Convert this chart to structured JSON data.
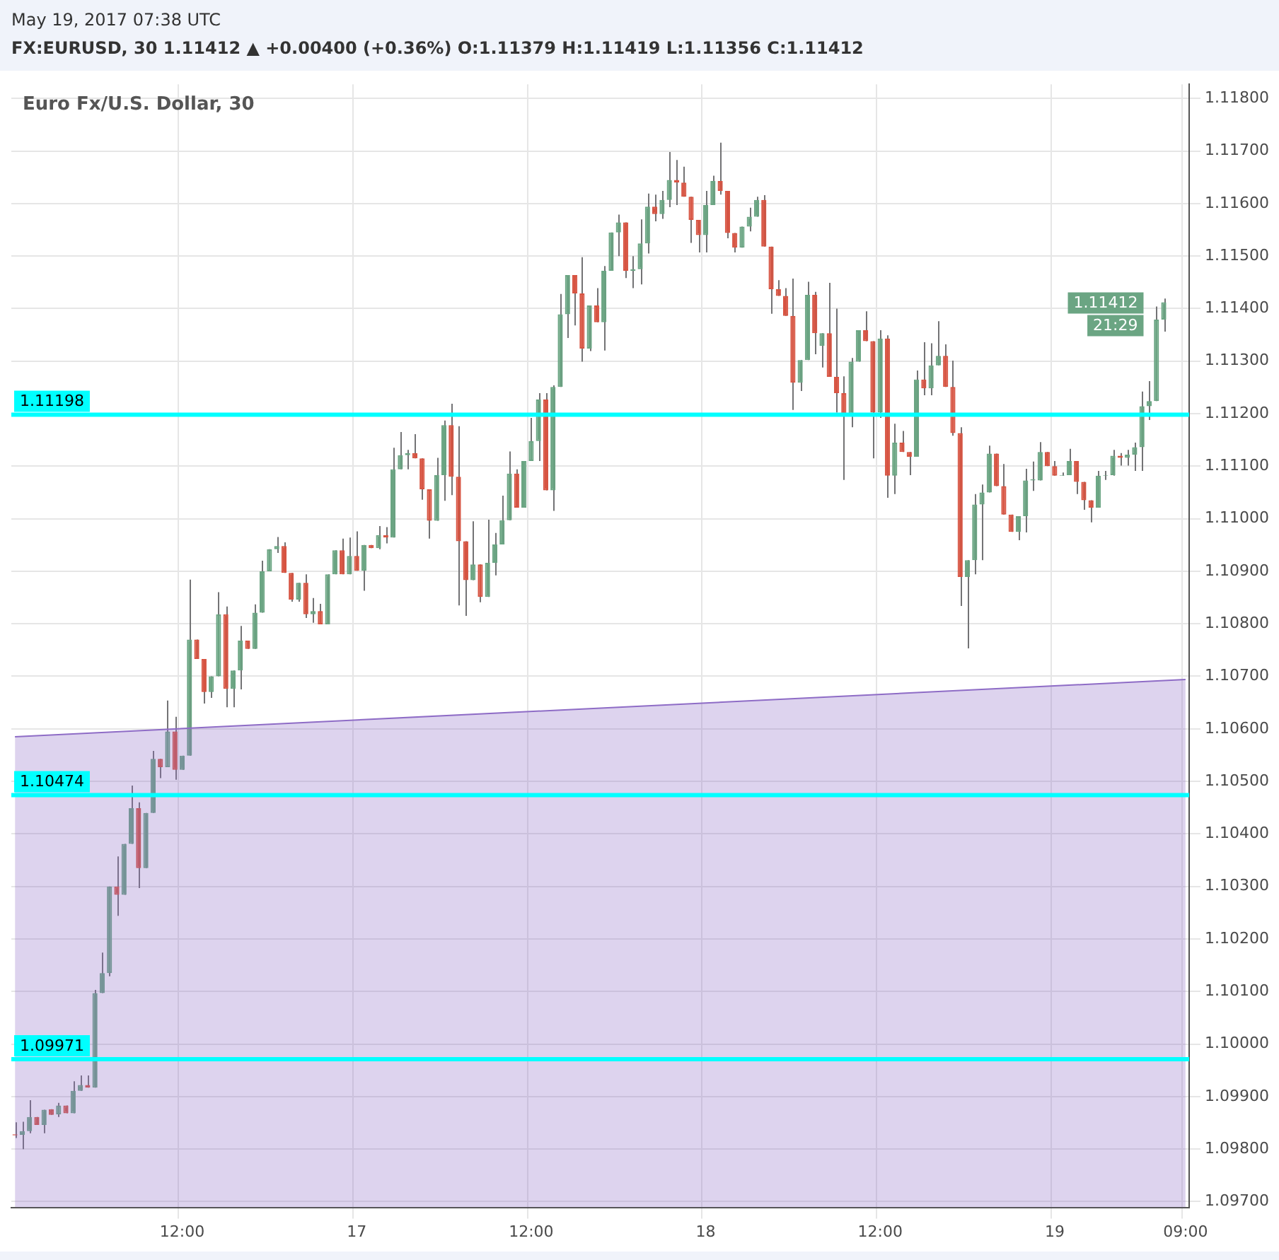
{
  "chart_data": {
    "type": "candlestick",
    "title": "Euro Fx/U.S. Dollar, 30",
    "categories": [
      null,
      null,
      null,
      null,
      null,
      null,
      null,
      null,
      null,
      null,
      null,
      null,
      null,
      null,
      null,
      null,
      null,
      null,
      null,
      null,
      null,
      null,
      null,
      "12:00",
      null,
      null,
      null,
      null,
      null,
      null,
      null,
      null,
      null,
      null,
      null,
      null,
      null,
      null,
      null,
      null,
      null,
      null,
      null,
      null,
      null,
      null,
      null,
      "17",
      null,
      null,
      null,
      null,
      null,
      null,
      null,
      null,
      null,
      null,
      null,
      null,
      null,
      null,
      null,
      null,
      null,
      null,
      null,
      null,
      null,
      null,
      null,
      "12:00",
      null,
      null,
      null,
      null,
      null,
      null,
      null,
      null,
      null,
      null,
      null,
      null,
      null,
      null,
      null,
      null,
      null,
      null,
      null,
      null,
      null,
      null,
      null,
      "18",
      null,
      null,
      null,
      null,
      null,
      null,
      null,
      null,
      null,
      null,
      null,
      null,
      null,
      null,
      null,
      null,
      null,
      null,
      null,
      null,
      null,
      null,
      null,
      "12:00",
      null,
      null,
      null,
      null,
      null,
      null,
      null,
      null,
      null,
      null,
      null,
      null,
      null,
      null,
      null,
      null,
      null,
      null,
      null,
      null,
      null,
      null,
      null,
      "19",
      null,
      null,
      null,
      null,
      null,
      null,
      null,
      null,
      null,
      null,
      null,
      null,
      null,
      null,
      null,
      null,
      null,
      "09:00"
    ],
    "ohlc": [
      [
        1.09828,
        1.09851,
        1.09821,
        1.09826
      ],
      [
        1.09827,
        1.09852,
        1.098,
        1.09834
      ],
      [
        1.09834,
        1.09893,
        1.0983,
        1.09861
      ],
      [
        1.09861,
        1.09861,
        1.09846,
        1.09846
      ],
      [
        1.09846,
        1.09875,
        1.0983,
        1.09875
      ],
      [
        1.09876,
        1.09876,
        1.09865,
        1.09865
      ],
      [
        1.09866,
        1.09888,
        1.09861,
        1.09883
      ],
      [
        1.09883,
        1.09883,
        1.09868,
        1.09868
      ],
      [
        1.09868,
        1.09929,
        1.09868,
        1.09911
      ],
      [
        1.09911,
        1.0994,
        1.09911,
        1.09922
      ],
      [
        1.09922,
        1.0994,
        1.09917,
        1.09917
      ],
      [
        1.09917,
        1.10103,
        1.09917,
        1.10097
      ],
      [
        1.10097,
        1.10174,
        1.10097,
        1.10135
      ],
      [
        1.10135,
        1.103,
        1.10129,
        1.103
      ],
      [
        1.103,
        1.10357,
        1.10244,
        1.10284
      ],
      [
        1.10284,
        1.10381,
        1.10284,
        1.10381
      ],
      [
        1.10381,
        1.10492,
        1.10381,
        1.10449
      ],
      [
        1.10449,
        1.1046,
        1.10297,
        1.10335
      ],
      [
        1.10335,
        1.1044,
        1.10335,
        1.1044
      ],
      [
        1.1044,
        1.10558,
        1.1044,
        1.10543
      ],
      [
        1.10543,
        1.10543,
        1.10506,
        1.10527
      ],
      [
        1.10527,
        1.10654,
        1.10527,
        1.10595
      ],
      [
        1.10595,
        1.10623,
        1.10503,
        1.10522
      ],
      [
        1.10522,
        1.10549,
        1.10522,
        1.10549
      ],
      [
        1.10549,
        1.10884,
        1.10549,
        1.1077
      ],
      [
        1.1077,
        1.1077,
        1.10733,
        1.10733
      ],
      [
        1.10733,
        1.10733,
        1.10648,
        1.1067
      ],
      [
        1.1067,
        1.107,
        1.10659,
        1.107
      ],
      [
        1.107,
        1.1086,
        1.107,
        1.10818
      ],
      [
        1.10818,
        1.10833,
        1.10641,
        1.10676
      ],
      [
        1.10676,
        1.10711,
        1.10641,
        1.10711
      ],
      [
        1.10711,
        1.10796,
        1.10675,
        1.10768
      ],
      [
        1.10768,
        1.10768,
        1.10752,
        1.10752
      ],
      [
        1.10752,
        1.10837,
        1.10752,
        1.10821
      ],
      [
        1.10821,
        1.1092,
        1.10821,
        1.109
      ],
      [
        1.109,
        1.10942,
        1.109,
        1.10942
      ],
      [
        1.10942,
        1.10965,
        1.10935,
        1.10948
      ],
      [
        1.10948,
        1.10955,
        1.10897,
        1.10897
      ],
      [
        1.10897,
        1.10897,
        1.10842,
        1.10846
      ],
      [
        1.10846,
        1.10878,
        1.10842,
        1.10878
      ],
      [
        1.10878,
        1.10894,
        1.10811,
        1.10818
      ],
      [
        1.10818,
        1.10849,
        1.10802,
        1.10824
      ],
      [
        1.10824,
        1.10838,
        1.10799,
        1.10799
      ],
      [
        1.10799,
        1.10894,
        1.10799,
        1.10894
      ],
      [
        1.10894,
        1.1094,
        1.10894,
        1.1094
      ],
      [
        1.1094,
        1.10962,
        1.10894,
        1.10894
      ],
      [
        1.10894,
        1.10964,
        1.10894,
        1.10929
      ],
      [
        1.10929,
        1.10976,
        1.10901,
        1.10901
      ],
      [
        1.10901,
        1.1095,
        1.10863,
        1.1095
      ],
      [
        1.1095,
        1.1095,
        1.10944,
        1.10944
      ],
      [
        1.10944,
        1.10986,
        1.10942,
        1.10969
      ],
      [
        1.10969,
        1.10984,
        1.10953,
        1.10964
      ],
      [
        1.10964,
        1.11135,
        1.10964,
        1.11094
      ],
      [
        1.11094,
        1.11165,
        1.11094,
        1.11121
      ],
      [
        1.11121,
        1.11131,
        1.11094,
        1.11125
      ],
      [
        1.11125,
        1.11161,
        1.11115,
        1.11115
      ],
      [
        1.11115,
        1.11115,
        1.11036,
        1.11056
      ],
      [
        1.11056,
        1.11056,
        1.10962,
        1.10996
      ],
      [
        1.10996,
        1.11116,
        1.10996,
        1.11083
      ],
      [
        1.11083,
        1.11187,
        1.11034,
        1.11178
      ],
      [
        1.11178,
        1.11219,
        1.11045,
        1.1108
      ],
      [
        1.1108,
        1.11176,
        1.10835,
        1.10957
      ],
      [
        1.10957,
        1.10957,
        1.10815,
        1.10883
      ],
      [
        1.10883,
        1.10995,
        1.10883,
        1.10913
      ],
      [
        1.10913,
        1.10913,
        1.10841,
        1.10851
      ],
      [
        1.10851,
        1.10998,
        1.10851,
        1.10916
      ],
      [
        1.10916,
        1.10973,
        1.10892,
        1.10951
      ],
      [
        1.10951,
        1.11044,
        1.10951,
        1.10997
      ],
      [
        1.10997,
        1.11128,
        1.10997,
        1.11086
      ],
      [
        1.11086,
        1.11094,
        1.11021,
        1.11021
      ],
      [
        1.11021,
        1.1111,
        1.11021,
        1.1111
      ],
      [
        1.1111,
        1.11192,
        1.1111,
        1.11148
      ],
      [
        1.11148,
        1.11239,
        1.1111,
        1.11227
      ],
      [
        1.11227,
        1.11239,
        1.11054,
        1.11054
      ],
      [
        1.11054,
        1.11254,
        1.11015,
        1.11251
      ],
      [
        1.11251,
        1.11428,
        1.11251,
        1.11389
      ],
      [
        1.11389,
        1.11464,
        1.11344,
        1.11464
      ],
      [
        1.11464,
        1.11464,
        1.11368,
        1.11429
      ],
      [
        1.11429,
        1.11498,
        1.11299,
        1.11324
      ],
      [
        1.11324,
        1.11406,
        1.11319,
        1.11406
      ],
      [
        1.11406,
        1.11439,
        1.11374,
        1.11374
      ],
      [
        1.11374,
        1.11481,
        1.1132,
        1.11472
      ],
      [
        1.11472,
        1.11545,
        1.11472,
        1.11545
      ],
      [
        1.11545,
        1.11579,
        1.115,
        1.11564
      ],
      [
        1.11564,
        1.11564,
        1.11458,
        1.11472
      ],
      [
        1.11472,
        1.115,
        1.11439,
        1.11475
      ],
      [
        1.11475,
        1.1157,
        1.11446,
        1.11524
      ],
      [
        1.11524,
        1.11619,
        1.11505,
        1.11594
      ],
      [
        1.11594,
        1.11617,
        1.11566,
        1.1158
      ],
      [
        1.1158,
        1.11624,
        1.11571,
        1.11607
      ],
      [
        1.11607,
        1.11698,
        1.11593,
        1.11645
      ],
      [
        1.11645,
        1.11683,
        1.11597,
        1.1164
      ],
      [
        1.1164,
        1.1167,
        1.11613,
        1.11613
      ],
      [
        1.11613,
        1.11613,
        1.11525,
        1.11569
      ],
      [
        1.11569,
        1.11569,
        1.11507,
        1.1154
      ],
      [
        1.1154,
        1.11624,
        1.11507,
        1.11597
      ],
      [
        1.11597,
        1.11653,
        1.11597,
        1.11643
      ],
      [
        1.11643,
        1.11716,
        1.11617,
        1.11624
      ],
      [
        1.11624,
        1.11624,
        1.11534,
        1.11544
      ],
      [
        1.11544,
        1.11544,
        1.11507,
        1.11516
      ],
      [
        1.11516,
        1.11556,
        1.11516,
        1.11556
      ],
      [
        1.11556,
        1.11592,
        1.11547,
        1.11575
      ],
      [
        1.11575,
        1.11613,
        1.11575,
        1.11607
      ],
      [
        1.11607,
        1.11616,
        1.11518,
        1.11518
      ],
      [
        1.11518,
        1.11518,
        1.1139,
        1.11437
      ],
      [
        1.11437,
        1.11454,
        1.11424,
        1.11424
      ],
      [
        1.11424,
        1.11439,
        1.11386,
        1.11386
      ],
      [
        1.11386,
        1.11457,
        1.11207,
        1.11259
      ],
      [
        1.11259,
        1.11302,
        1.11243,
        1.11302
      ],
      [
        1.11302,
        1.11451,
        1.11302,
        1.11426
      ],
      [
        1.11426,
        1.11432,
        1.11313,
        1.11353
      ],
      [
        1.11329,
        1.11353,
        1.11288,
        1.11353
      ],
      [
        1.11353,
        1.11449,
        1.1127,
        1.1127
      ],
      [
        1.1127,
        1.114,
        1.11202,
        1.11239
      ],
      [
        1.11239,
        1.11271,
        1.11074,
        1.11199
      ],
      [
        1.11199,
        1.11306,
        1.11174,
        1.11299
      ],
      [
        1.11299,
        1.11359,
        1.11299,
        1.11359
      ],
      [
        1.11359,
        1.11395,
        1.11338,
        1.11338
      ],
      [
        1.11338,
        1.11338,
        1.11115,
        1.11202
      ],
      [
        1.11202,
        1.11359,
        1.11192,
        1.11343
      ],
      [
        1.11343,
        1.11349,
        1.1104,
        1.11082
      ],
      [
        1.11082,
        1.11181,
        1.11047,
        1.11145
      ],
      [
        1.11145,
        1.11167,
        1.11127,
        1.11127
      ],
      [
        1.11127,
        1.11127,
        1.11083,
        1.11118
      ],
      [
        1.11118,
        1.11282,
        1.11118,
        1.11265
      ],
      [
        1.11265,
        1.11336,
        1.11235,
        1.11248
      ],
      [
        1.11248,
        1.11334,
        1.11235,
        1.11292
      ],
      [
        1.11292,
        1.11376,
        1.11292,
        1.1131
      ],
      [
        1.1131,
        1.11332,
        1.11251,
        1.11251
      ],
      [
        1.11251,
        1.11301,
        1.11158,
        1.11163
      ],
      [
        1.11163,
        1.11174,
        1.10834,
        1.10889
      ],
      [
        1.10889,
        1.10921,
        1.10753,
        1.10921
      ],
      [
        1.10921,
        1.11047,
        1.10894,
        1.11027
      ],
      [
        1.11027,
        1.11065,
        1.10921,
        1.1105
      ],
      [
        1.1105,
        1.11139,
        1.1105,
        1.11124
      ],
      [
        1.11124,
        1.11124,
        1.11062,
        1.11062
      ],
      [
        1.11062,
        1.11104,
        1.11008,
        1.11008
      ],
      [
        1.11008,
        1.11008,
        1.10975,
        1.10975
      ],
      [
        1.10975,
        1.11005,
        1.10959,
        1.11005
      ],
      [
        1.11005,
        1.11095,
        1.10974,
        1.11073
      ],
      [
        1.11073,
        1.11109,
        1.11053,
        1.11075
      ],
      [
        1.11073,
        1.11146,
        1.11073,
        1.11127
      ],
      [
        1.11127,
        1.11127,
        1.111,
        1.111
      ],
      [
        1.111,
        1.1111,
        1.11082,
        1.11082
      ],
      [
        1.11082,
        1.11088,
        1.11082,
        1.11083
      ],
      [
        1.11083,
        1.11133,
        1.11083,
        1.1111
      ],
      [
        1.1111,
        1.1111,
        1.11047,
        1.1107
      ],
      [
        1.1107,
        1.1107,
        1.11017,
        1.11035
      ],
      [
        1.11035,
        1.11035,
        1.10993,
        1.11021
      ],
      [
        1.11021,
        1.11091,
        1.11021,
        1.11082
      ],
      [
        1.11082,
        1.11091,
        1.11074,
        1.11083
      ],
      [
        1.11083,
        1.11131,
        1.11082,
        1.1112
      ],
      [
        1.1112,
        1.11125,
        1.11101,
        1.11116
      ],
      [
        1.11116,
        1.11131,
        1.11101,
        1.11122
      ],
      [
        1.11122,
        1.11145,
        1.11091,
        1.11136
      ],
      [
        1.11136,
        1.11242,
        1.11091,
        1.11214
      ],
      [
        1.11214,
        1.11262,
        1.11188,
        1.11224
      ],
      [
        1.11224,
        1.11404,
        1.11224,
        1.11379
      ],
      [
        1.11379,
        1.11419,
        1.11356,
        1.11412
      ],
      null,
      null,
      null
    ],
    "colors": [
      "#d75442",
      "#6ba583",
      "#6ba583",
      "#d75442",
      "#6ba583",
      "#d75442",
      "#6ba583",
      "#d75442",
      "#6ba583",
      "#6ba583",
      "#d75442",
      "#6ba583",
      "#6ba583",
      "#6ba583",
      "#d75442",
      "#6ba583",
      "#6ba583",
      "#d75442",
      "#6ba583",
      "#6ba583",
      "#d75442",
      "#6ba583",
      "#d75442",
      "#6ba583",
      "#6ba583",
      "#d75442",
      "#d75442",
      "#6ba583",
      "#6ba583",
      "#d75442",
      "#6ba583",
      "#6ba583",
      "#d75442",
      "#6ba583",
      "#6ba583",
      "#6ba583",
      "#6ba583",
      "#d75442",
      "#d75442",
      "#6ba583",
      "#d75442",
      "#6ba583",
      "#d75442",
      "#6ba583",
      "#6ba583",
      "#d75442",
      "#6ba583",
      "#d75442",
      "#6ba583",
      "#d75442",
      "#6ba583",
      "#d75442",
      "#6ba583",
      "#6ba583",
      "#6ba583",
      "#d75442",
      "#d75442",
      "#d75442",
      "#6ba583",
      "#6ba583",
      "#d75442",
      "#d75442",
      "#d75442",
      "#6ba583",
      "#d75442",
      "#6ba583",
      "#6ba583",
      "#6ba583",
      "#6ba583",
      "#d75442",
      "#6ba583",
      "#6ba583",
      "#6ba583",
      "#d75442",
      "#6ba583",
      "#6ba583",
      "#6ba583",
      "#d75442",
      "#d75442",
      "#6ba583",
      "#d75442",
      "#6ba583",
      "#6ba583",
      "#6ba583",
      "#d75442",
      "#6ba583",
      "#6ba583",
      "#6ba583",
      "#d75442",
      "#6ba583",
      "#6ba583",
      "#d75442",
      "#d75442",
      "#d75442",
      "#d75442",
      "#6ba583",
      "#6ba583",
      "#d75442",
      "#d75442",
      "#d75442",
      "#6ba583",
      "#6ba583",
      "#6ba583",
      "#d75442",
      "#d75442",
      "#d75442",
      "#d75442",
      "#d75442",
      "#6ba583",
      "#6ba583",
      "#d75442",
      "#6ba583",
      "#d75442",
      "#d75442",
      "#d75442",
      "#6ba583",
      "#6ba583",
      "#d75442",
      "#d75442",
      "#6ba583",
      "#d75442",
      "#6ba583",
      "#d75442",
      "#d75442",
      "#6ba583",
      "#d75442",
      "#6ba583",
      "#6ba583",
      "#d75442",
      "#d75442",
      "#d75442",
      "#6ba583",
      "#6ba583",
      "#6ba583",
      "#6ba583",
      "#d75442",
      "#d75442",
      "#d75442",
      "#6ba583",
      "#6ba583",
      "#6ba583",
      "#6ba583",
      "#d75442",
      "#d75442",
      "#6ba583",
      "#6ba583",
      "#d75442",
      "#d75442",
      "#d75442",
      "#6ba583",
      "#6ba583",
      "#6ba583",
      "#d75442",
      "#6ba583",
      "#6ba583",
      "#6ba583",
      "#6ba583",
      "#6ba583",
      "#6ba583",
      null,
      null,
      null
    ],
    "series": [
      {
        "type": "area",
        "color": "#8e6cc6",
        "values": [
          1.10585,
          null,
          null,
          null,
          null,
          null,
          null,
          null,
          null,
          null,
          null,
          null,
          null,
          null,
          null,
          null,
          null,
          null,
          null,
          null,
          null,
          null,
          null,
          null,
          null,
          null,
          null,
          null,
          null,
          null,
          null,
          null,
          null,
          null,
          null,
          null,
          null,
          null,
          null,
          null,
          null,
          null,
          null,
          null,
          null,
          null,
          null,
          null,
          null,
          null,
          null,
          null,
          null,
          null,
          null,
          null,
          null,
          null,
          null,
          null,
          null,
          null,
          null,
          null,
          null,
          null,
          null,
          null,
          null,
          null,
          null,
          null,
          null,
          null,
          null,
          null,
          null,
          null,
          null,
          null,
          null,
          null,
          null,
          null,
          null,
          null,
          null,
          null,
          null,
          null,
          null,
          null,
          null,
          null,
          null,
          null,
          null,
          null,
          null,
          null,
          null,
          null,
          null,
          null,
          null,
          null,
          null,
          null,
          null,
          null,
          null,
          null,
          null,
          null,
          null,
          null,
          null,
          null,
          null,
          null,
          null,
          null,
          null,
          null,
          null,
          null,
          null,
          null,
          null,
          null,
          null,
          null,
          null,
          null,
          null,
          null,
          null,
          null,
          null,
          null,
          null,
          null,
          null,
          null,
          null,
          null,
          null,
          null,
          null,
          null,
          null,
          null,
          null,
          null,
          null,
          null,
          null,
          null,
          null,
          null,
          null,
          1.10694
        ]
      }
    ],
    "ylim": [
      1.09689,
      1.11827
    ],
    "yticks": [
      {
        "value": 1.097,
        "label": "1.09700"
      },
      {
        "value": 1.098,
        "label": "1.09800"
      },
      {
        "value": 1.099,
        "label": "1.09900"
      },
      {
        "value": 1.1,
        "label": "1.10000"
      },
      {
        "value": 1.101,
        "label": "1.10100"
      },
      {
        "value": 1.102,
        "label": "1.10200"
      },
      {
        "value": 1.103,
        "label": "1.10300"
      },
      {
        "value": 1.104,
        "label": "1.10400"
      },
      {
        "value": 1.105,
        "label": "1.10500"
      },
      {
        "value": 1.106,
        "label": "1.10600"
      },
      {
        "value": 1.107,
        "label": "1.10700"
      },
      {
        "value": 1.108,
        "label": "1.10800"
      },
      {
        "value": 1.109,
        "label": "1.10900"
      },
      {
        "value": 1.11,
        "label": "1.11000"
      },
      {
        "value": 1.111,
        "label": "1.11100"
      },
      {
        "value": 1.112,
        "label": "1.11200"
      },
      {
        "value": 1.113,
        "label": "1.11300"
      },
      {
        "value": 1.114,
        "label": "1.11400"
      },
      {
        "value": 1.115,
        "label": "1.11500"
      },
      {
        "value": 1.116,
        "label": "1.11600"
      },
      {
        "value": 1.117,
        "label": "1.11700"
      },
      {
        "value": 1.118,
        "label": "1.11800"
      }
    ],
    "grid": true,
    "ref_lines": [
      {
        "axis": "y",
        "value": 1.11198,
        "label": "1.11198",
        "color": "#00ffff"
      },
      {
        "axis": "y",
        "value": 1.10474,
        "label": "1.10474",
        "color": "#00ffff"
      },
      {
        "axis": "y",
        "value": 1.09971,
        "label": "1.09971",
        "color": "#00ffff"
      }
    ],
    "annotations": [
      "May 19, 2017 07:38 UTC",
      "FX:EURUSD, 30  1.11412 ▲ +0.00400 (+0.36%)  O:1.11379  H:1.11419  L:1.11356  C:1.11412",
      "1.11412",
      "21:29"
    ]
  }
}
